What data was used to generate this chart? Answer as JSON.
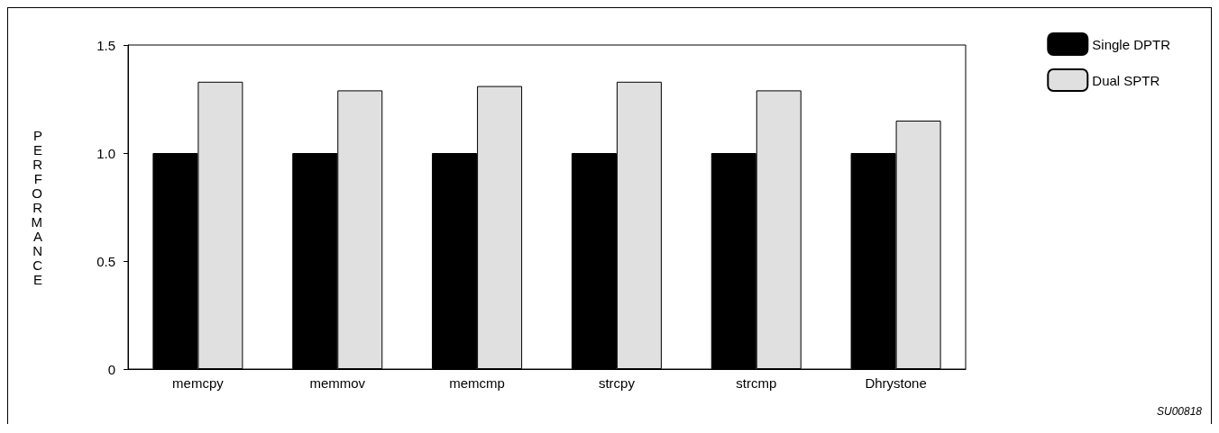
{
  "chart_data": {
    "type": "bar",
    "ylabel": "PERFORMANCE",
    "categories": [
      "memcpy",
      "memmov",
      "memcmp",
      "strcpy",
      "strcmp",
      "Dhrystone"
    ],
    "series": [
      {
        "name": "Single DPTR",
        "color": "#000000",
        "values": [
          1.0,
          1.0,
          1.0,
          1.0,
          1.0,
          1.0
        ]
      },
      {
        "name": "Dual SPTR",
        "color": "#e0e0e0",
        "values": [
          1.33,
          1.29,
          1.31,
          1.33,
          1.29,
          1.15
        ]
      }
    ],
    "ylim": [
      0,
      1.5
    ],
    "yticks": [
      0,
      {
        "value": 0.5,
        "label": "0.5"
      },
      {
        "value": 1,
        "label": "1.0"
      },
      {
        "value": 1.5,
        "label": "1.5"
      }
    ],
    "grid": false,
    "legend": "top right",
    "annotations": [
      "SU00818"
    ]
  }
}
